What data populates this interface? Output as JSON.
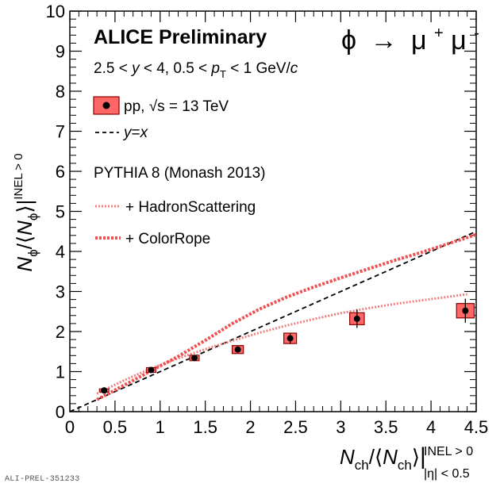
{
  "chart_data": {
    "type": "scatter",
    "title": "ALICE Preliminary",
    "process": {
      "phi": "ϕ",
      "arrow": "→",
      "mu": "μ",
      "plus": "+",
      "minus": "-"
    },
    "selection": {
      "range1": "2.5 < ",
      "y": "y",
      "range1b": " < 4, 0.5 < ",
      "p": "p",
      "T": "T",
      "range2": " < 1 GeV/",
      "c": "c"
    },
    "xlabel": {
      "N": "N",
      "ch": "ch",
      "mid": "/⟨",
      "close": "⟩",
      "sup": "INEL > 0",
      "sub_eta": "|η| < 0.5"
    },
    "ylabel": {
      "N": "N",
      "phi": "ϕ",
      "mid": "/⟨",
      "close": "⟩",
      "sup": "INEL > 0"
    },
    "xlim": [
      0,
      4.5
    ],
    "ylim": [
      0,
      10
    ],
    "x_ticks": [
      "0",
      "0.5",
      "1",
      "1.5",
      "2",
      "2.5",
      "3",
      "3.5",
      "4",
      "4.5"
    ],
    "y_ticks": [
      "0",
      "1",
      "2",
      "3",
      "4",
      "5",
      "6",
      "7",
      "8",
      "9",
      "10"
    ],
    "legend": {
      "data_label": "pp, ",
      "sqrt_s": "√s",
      "energy": " = 13 TeV",
      "yx_label_y": "y",
      "yx_label_eq": "=",
      "yx_label_x": "x",
      "generator": "PYTHIA 8 (Monash 2013)",
      "hadron_scattering": "+ HadronScattering",
      "color_rope": "+ ColorRope"
    },
    "series": [
      {
        "name": "pp, √s = 13 TeV",
        "kind": "data",
        "x": [
          0.38,
          0.9,
          1.38,
          1.86,
          2.44,
          3.18,
          4.38
        ],
        "y": [
          0.53,
          1.04,
          1.34,
          1.55,
          1.83,
          2.32,
          2.52
        ],
        "stat_err": [
          0.05,
          0.05,
          0.05,
          0.07,
          0.13,
          0.23,
          0.3
        ],
        "syst_err": [
          0.04,
          0.06,
          0.07,
          0.1,
          0.13,
          0.15,
          0.18
        ],
        "color": "#ff6666"
      },
      {
        "name": "y=x",
        "kind": "reference",
        "x": [
          0,
          4.5
        ],
        "y": [
          0,
          4.5
        ],
        "color": "#000000"
      },
      {
        "name": "+ HadronScattering",
        "kind": "model",
        "x": [
          0.3,
          0.6,
          0.9,
          1.2,
          1.5,
          1.8,
          2.1,
          2.4,
          2.7,
          3.0,
          3.3,
          3.6,
          3.9,
          4.2,
          4.4
        ],
        "y": [
          0.45,
          0.78,
          1.08,
          1.33,
          1.56,
          1.77,
          1.97,
          2.15,
          2.31,
          2.46,
          2.58,
          2.69,
          2.78,
          2.87,
          2.93
        ],
        "color": "#f08080"
      },
      {
        "name": "+ ColorRope",
        "kind": "model",
        "x": [
          0.3,
          0.6,
          0.9,
          1.2,
          1.5,
          1.8,
          2.1,
          2.4,
          2.7,
          3.0,
          3.3,
          3.6,
          3.9,
          4.2,
          4.5
        ],
        "y": [
          0.3,
          0.66,
          1.02,
          1.38,
          1.78,
          2.2,
          2.56,
          2.86,
          3.11,
          3.34,
          3.56,
          3.78,
          3.98,
          4.2,
          4.42
        ],
        "color": "#f05050"
      }
    ],
    "grid": false,
    "legend_placement": "top-left",
    "colors": {
      "marker_fill": "#000000",
      "box_fill": "#ff6666",
      "box_edge": "#8b0000"
    }
  },
  "footer": {
    "id": "ALI-PREL-351233"
  }
}
